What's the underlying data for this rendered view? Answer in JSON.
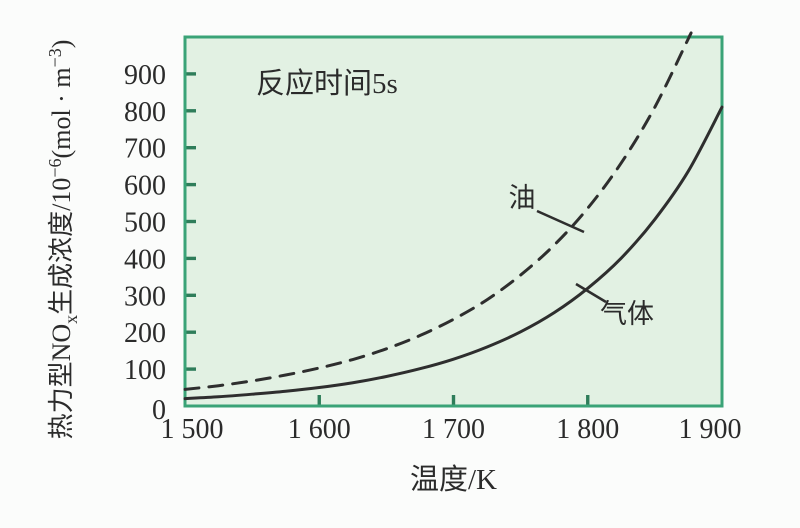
{
  "figure": {
    "description_labels": {
      "annotation": "反应时间5s",
      "xlabel": "温度/K"
    }
  },
  "colors": {
    "page_bg": "#fbfcfb",
    "plot_bg": "#e2f1e3",
    "plot_border": "#3aa377",
    "tick": "#2e7d5a",
    "curve": "#2e2e2e",
    "text": "#2b2b2b"
  },
  "chart_data": {
    "type": "line",
    "title": "",
    "annotation": "反应时间5s",
    "xlabel": "温度/K",
    "ylabel_plain": "热力型NOx生成浓度/10−6(mol · m−3)",
    "ylabel_segments": [
      {
        "text": "热力型NO"
      },
      {
        "text": "x",
        "style": "sub"
      },
      {
        "text": "生成浓度/10"
      },
      {
        "text": "−6",
        "style": "sup"
      },
      {
        "text": "(mol · m"
      },
      {
        "text": "−3",
        "style": "sup"
      },
      {
        "text": ")"
      }
    ],
    "xlim": [
      1500,
      1900
    ],
    "ylim": [
      0,
      1000
    ],
    "grid": false,
    "legend_position": "inline-curve-labels",
    "x_ticks": [
      {
        "v": 1500,
        "label": "1 500"
      },
      {
        "v": 1600,
        "label": "1 600"
      },
      {
        "v": 1700,
        "label": "1 700"
      },
      {
        "v": 1800,
        "label": "1 800"
      },
      {
        "v": 1900,
        "label": "1 900"
      }
    ],
    "y_ticks": [
      {
        "v": 0,
        "label": "0"
      },
      {
        "v": 100,
        "label": "100"
      },
      {
        "v": 200,
        "label": "200"
      },
      {
        "v": 300,
        "label": "300"
      },
      {
        "v": 400,
        "label": "400"
      },
      {
        "v": 500,
        "label": "500"
      },
      {
        "v": 600,
        "label": "600"
      },
      {
        "v": 700,
        "label": "700"
      },
      {
        "v": 800,
        "label": "800"
      },
      {
        "v": 900,
        "label": "900"
      }
    ],
    "x": [
      1500,
      1525,
      1550,
      1575,
      1600,
      1625,
      1650,
      1675,
      1700,
      1725,
      1750,
      1775,
      1800,
      1825,
      1850,
      1875,
      1900
    ],
    "series": [
      {
        "name": "油",
        "line_style": "dashed",
        "values": [
          45,
          55,
          68,
          84,
          103,
          126,
          155,
          191,
          235,
          288,
          355,
          436,
          536,
          659,
          810,
          996,
          1224
        ]
      },
      {
        "name": "气体",
        "line_style": "solid",
        "values": [
          20,
          25,
          32,
          40,
          50,
          63,
          80,
          101,
          127,
          160,
          201,
          253,
          319,
          401,
          506,
          637,
          810
        ]
      }
    ]
  }
}
